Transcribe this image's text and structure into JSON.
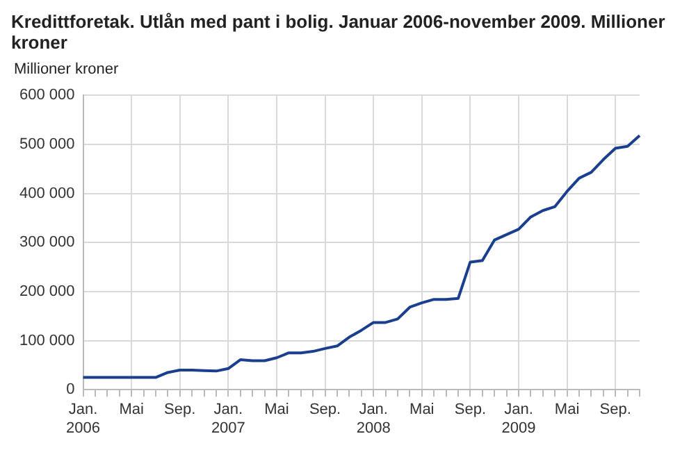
{
  "chart_data": {
    "type": "line",
    "title": "Kredittforetak. Utlån med pant i bolig. Januar 2006-november 2009. Millioner kroner",
    "ylabel": "Millioner kroner",
    "categories": [
      "Jan. 2006",
      null,
      null,
      null,
      "Mai",
      null,
      null,
      null,
      "Sep.",
      null,
      null,
      null,
      "Jan. 2007",
      null,
      null,
      null,
      "Mai",
      null,
      null,
      null,
      "Sep.",
      null,
      null,
      null,
      "Jan. 2008",
      null,
      null,
      null,
      "Mai",
      null,
      null,
      null,
      "Sep.",
      null,
      null,
      null,
      "Jan. 2009",
      null,
      null,
      null,
      "Mai",
      null,
      null,
      null,
      "Sep.",
      null,
      null
    ],
    "series": [
      {
        "color": "#1a3f8f",
        "values": [
          25000,
          25000,
          25000,
          25000,
          25000,
          25000,
          25000,
          35000,
          40000,
          40000,
          39000,
          38000,
          43000,
          61000,
          59000,
          59000,
          65000,
          75000,
          75000,
          78000,
          84000,
          89000,
          107000,
          121000,
          137000,
          137000,
          144000,
          168000,
          177000,
          184000,
          184000,
          186000,
          260000,
          263000,
          305000,
          316000,
          327000,
          352000,
          365000,
          373000,
          404000,
          431000,
          443000,
          469000,
          492000,
          496000,
          518000
        ]
      }
    ],
    "ylim": [
      0,
      600000
    ],
    "yticks": [
      {
        "value": 0,
        "label": "0"
      },
      {
        "value": 100000,
        "label": "100 000"
      },
      {
        "value": 200000,
        "label": "200 000"
      },
      {
        "value": 300000,
        "label": "300 000"
      },
      {
        "value": 400000,
        "label": "400 000"
      },
      {
        "value": 500000,
        "label": "500 000"
      },
      {
        "value": 600000,
        "label": "600 000"
      }
    ],
    "grid": true,
    "legend": false,
    "marker": "none",
    "line_style": "solid"
  }
}
